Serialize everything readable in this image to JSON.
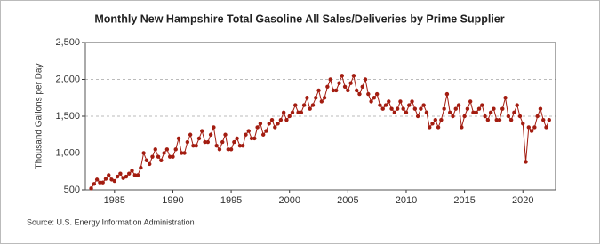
{
  "chart_data": {
    "type": "line",
    "title": "Monthly New Hampshire Total Gasoline All Sales/Deliveries by Prime Supplier",
    "y_label": "Thousand Gallons per Day",
    "source": "Source: U.S. Energy Information Administration",
    "x": [
      1983,
      1983.25,
      1983.5,
      1983.75,
      1984,
      1984.25,
      1984.5,
      1984.75,
      1985,
      1985.25,
      1985.5,
      1985.75,
      1986,
      1986.25,
      1986.5,
      1986.75,
      1987,
      1987.25,
      1987.5,
      1987.75,
      1988,
      1988.25,
      1988.5,
      1988.75,
      1989,
      1989.25,
      1989.5,
      1989.75,
      1990,
      1990.25,
      1990.5,
      1990.75,
      1991,
      1991.25,
      1991.5,
      1991.75,
      1992,
      1992.25,
      1992.5,
      1992.75,
      1993,
      1993.25,
      1993.5,
      1993.75,
      1994,
      1994.25,
      1994.5,
      1994.75,
      1995,
      1995.25,
      1995.5,
      1995.75,
      1996,
      1996.25,
      1996.5,
      1996.75,
      1997,
      1997.25,
      1997.5,
      1997.75,
      1998,
      1998.25,
      1998.5,
      1998.75,
      1999,
      1999.25,
      1999.5,
      1999.75,
      2000,
      2000.25,
      2000.5,
      2000.75,
      2001,
      2001.25,
      2001.5,
      2001.75,
      2002,
      2002.25,
      2002.5,
      2002.75,
      2003,
      2003.25,
      2003.5,
      2003.75,
      2004,
      2004.25,
      2004.5,
      2004.75,
      2005,
      2005.25,
      2005.5,
      2005.75,
      2006,
      2006.25,
      2006.5,
      2006.75,
      2007,
      2007.25,
      2007.5,
      2007.75,
      2008,
      2008.25,
      2008.5,
      2008.75,
      2009,
      2009.25,
      2009.5,
      2009.75,
      2010,
      2010.25,
      2010.5,
      2010.75,
      2011,
      2011.25,
      2011.5,
      2011.75,
      2012,
      2012.25,
      2012.5,
      2012.75,
      2013,
      2013.25,
      2013.5,
      2013.75,
      2014,
      2014.25,
      2014.5,
      2014.75,
      2015,
      2015.25,
      2015.5,
      2015.75,
      2016,
      2016.25,
      2016.5,
      2016.75,
      2017,
      2017.25,
      2017.5,
      2017.75,
      2018,
      2018.25,
      2018.5,
      2018.75,
      2019,
      2019.25,
      2019.5,
      2019.75,
      2020,
      2020.25,
      2020.5,
      2020.75,
      2021,
      2021.25,
      2021.5,
      2021.75,
      2022,
      2022.25
    ],
    "series": [
      {
        "name": "New Hampshire Total Gasoline",
        "color": "#a31c10",
        "values": [
          520,
          580,
          640,
          600,
          600,
          650,
          700,
          640,
          620,
          680,
          720,
          660,
          680,
          720,
          760,
          700,
          700,
          800,
          1000,
          900,
          850,
          950,
          1050,
          950,
          900,
          1000,
          1050,
          950,
          950,
          1050,
          1200,
          1000,
          1000,
          1150,
          1250,
          1100,
          1100,
          1200,
          1300,
          1150,
          1150,
          1250,
          1350,
          1100,
          1050,
          1150,
          1250,
          1050,
          1050,
          1150,
          1200,
          1100,
          1100,
          1250,
          1300,
          1200,
          1200,
          1350,
          1400,
          1250,
          1300,
          1400,
          1450,
          1350,
          1400,
          1450,
          1550,
          1450,
          1500,
          1550,
          1650,
          1550,
          1550,
          1650,
          1750,
          1600,
          1650,
          1750,
          1850,
          1700,
          1750,
          1900,
          2000,
          1850,
          1850,
          1950,
          2050,
          1900,
          1850,
          1950,
          2050,
          1850,
          1800,
          1900,
          2000,
          1800,
          1700,
          1750,
          1800,
          1650,
          1600,
          1650,
          1700,
          1600,
          1550,
          1600,
          1700,
          1600,
          1550,
          1650,
          1700,
          1600,
          1500,
          1600,
          1650,
          1550,
          1350,
          1400,
          1450,
          1350,
          1450,
          1600,
          1800,
          1550,
          1500,
          1600,
          1650,
          1350,
          1500,
          1600,
          1700,
          1550,
          1550,
          1600,
          1650,
          1500,
          1450,
          1550,
          1600,
          1450,
          1450,
          1600,
          1750,
          1500,
          1450,
          1550,
          1650,
          1500,
          1400,
          880,
          1350,
          1300,
          1350,
          1500,
          1600,
          1450,
          1350,
          1450
        ]
      }
    ],
    "xlim": [
      1982.5,
      2022.8
    ],
    "xticks": [
      1985,
      1990,
      1995,
      2000,
      2005,
      2010,
      2015,
      2020
    ],
    "ylim": [
      500,
      2500
    ],
    "yticks": [
      {
        "value": 500,
        "label": "500"
      },
      {
        "value": 1000,
        "label": "1,000"
      },
      {
        "value": 1500,
        "label": "1,500"
      },
      {
        "value": 2000,
        "label": "2,000"
      },
      {
        "value": 2500,
        "label": "2,500"
      }
    ],
    "grid": true
  }
}
